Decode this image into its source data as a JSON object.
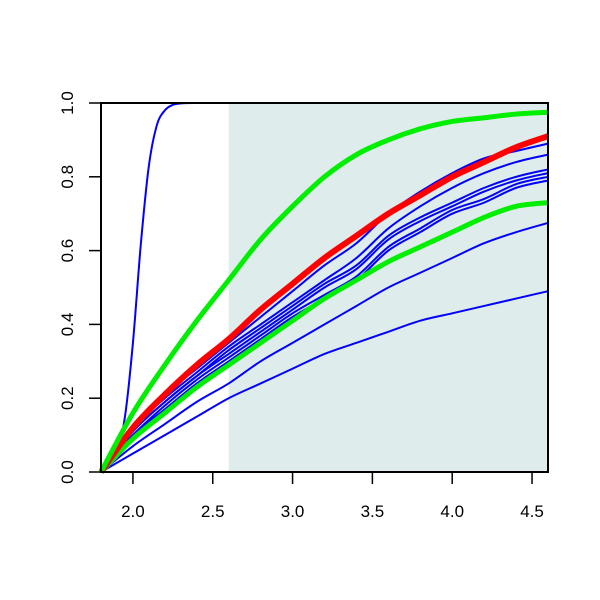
{
  "chart_data": {
    "type": "line",
    "title": "",
    "xlabel": "",
    "ylabel": "",
    "xlim": [
      1.8,
      4.6
    ],
    "ylim": [
      0.0,
      1.0
    ],
    "x_ticks": [
      2.0,
      2.5,
      3.0,
      3.5,
      4.0,
      4.5
    ],
    "x_tick_labels": [
      "2.0",
      "2.5",
      "3.0",
      "3.5",
      "4.0",
      "4.5"
    ],
    "y_ticks": [
      0.0,
      0.2,
      0.4,
      0.6,
      0.8,
      1.0
    ],
    "y_tick_labels": [
      "0.0",
      "0.2",
      "0.4",
      "0.6",
      "0.8",
      "1.0"
    ],
    "shaded_region": {
      "x_from": 2.6,
      "x_to": 4.6,
      "color": "#dfecec"
    },
    "grid": false,
    "legend": "none",
    "x": [
      1.8,
      2.0,
      2.2,
      2.4,
      2.6,
      2.8,
      3.0,
      3.2,
      3.4,
      3.6,
      3.8,
      4.0,
      4.2,
      4.4,
      4.6
    ],
    "series": [
      {
        "color": "#0000ff",
        "width": 2,
        "x": [
          1.8,
          1.9,
          1.95,
          2.0,
          2.05,
          2.1,
          2.15,
          2.2,
          2.25,
          2.3,
          2.4,
          2.5,
          2.6,
          4.6
        ],
        "values": [
          0.0,
          0.06,
          0.15,
          0.35,
          0.62,
          0.83,
          0.94,
          0.98,
          0.995,
          0.999,
          1.0,
          1.0,
          1.0,
          1.0
        ]
      },
      {
        "color": "#0000ff",
        "width": 2,
        "values": [
          0.0,
          0.05,
          0.1,
          0.15,
          0.2,
          0.24,
          0.28,
          0.32,
          0.35,
          0.38,
          0.41,
          0.43,
          0.45,
          0.47,
          0.49
        ]
      },
      {
        "color": "#0000ff",
        "width": 2,
        "values": [
          0.0,
          0.07,
          0.13,
          0.19,
          0.24,
          0.3,
          0.35,
          0.4,
          0.45,
          0.5,
          0.54,
          0.58,
          0.62,
          0.65,
          0.675
        ]
      },
      {
        "color": "#0000ff",
        "width": 2,
        "values": [
          0.0,
          0.1,
          0.17,
          0.24,
          0.3,
          0.36,
          0.42,
          0.47,
          0.52,
          0.6,
          0.65,
          0.7,
          0.73,
          0.77,
          0.79
        ]
      },
      {
        "color": "#0000ff",
        "width": 2,
        "values": [
          0.0,
          0.1,
          0.18,
          0.25,
          0.31,
          0.37,
          0.43,
          0.48,
          0.53,
          0.61,
          0.66,
          0.71,
          0.74,
          0.78,
          0.8
        ]
      },
      {
        "color": "#0000ff",
        "width": 2,
        "values": [
          0.0,
          0.11,
          0.19,
          0.26,
          0.32,
          0.38,
          0.44,
          0.5,
          0.55,
          0.63,
          0.68,
          0.72,
          0.76,
          0.79,
          0.81
        ]
      },
      {
        "color": "#0000ff",
        "width": 2,
        "values": [
          0.0,
          0.11,
          0.19,
          0.26,
          0.33,
          0.39,
          0.45,
          0.51,
          0.56,
          0.64,
          0.69,
          0.73,
          0.77,
          0.8,
          0.82
        ]
      },
      {
        "color": "#0000ff",
        "width": 2,
        "values": [
          0.0,
          0.12,
          0.2,
          0.27,
          0.34,
          0.4,
          0.46,
          0.52,
          0.58,
          0.66,
          0.72,
          0.77,
          0.81,
          0.84,
          0.86
        ]
      },
      {
        "color": "#0000ff",
        "width": 2,
        "values": [
          0.0,
          0.12,
          0.21,
          0.28,
          0.35,
          0.42,
          0.49,
          0.56,
          0.62,
          0.7,
          0.76,
          0.81,
          0.85,
          0.87,
          0.89
        ]
      },
      {
        "color": "#00ee00",
        "width": 5,
        "values": [
          0.0,
          0.09,
          0.16,
          0.23,
          0.29,
          0.35,
          0.41,
          0.47,
          0.52,
          0.57,
          0.61,
          0.65,
          0.69,
          0.72,
          0.73
        ]
      },
      {
        "color": "#ff0000",
        "width": 6,
        "values": [
          0.0,
          0.12,
          0.21,
          0.29,
          0.36,
          0.44,
          0.51,
          0.58,
          0.64,
          0.7,
          0.75,
          0.8,
          0.84,
          0.88,
          0.91
        ]
      },
      {
        "color": "#00ee00",
        "width": 5,
        "values": [
          0.0,
          0.16,
          0.29,
          0.41,
          0.52,
          0.63,
          0.72,
          0.8,
          0.86,
          0.9,
          0.93,
          0.95,
          0.96,
          0.97,
          0.975
        ]
      }
    ]
  }
}
